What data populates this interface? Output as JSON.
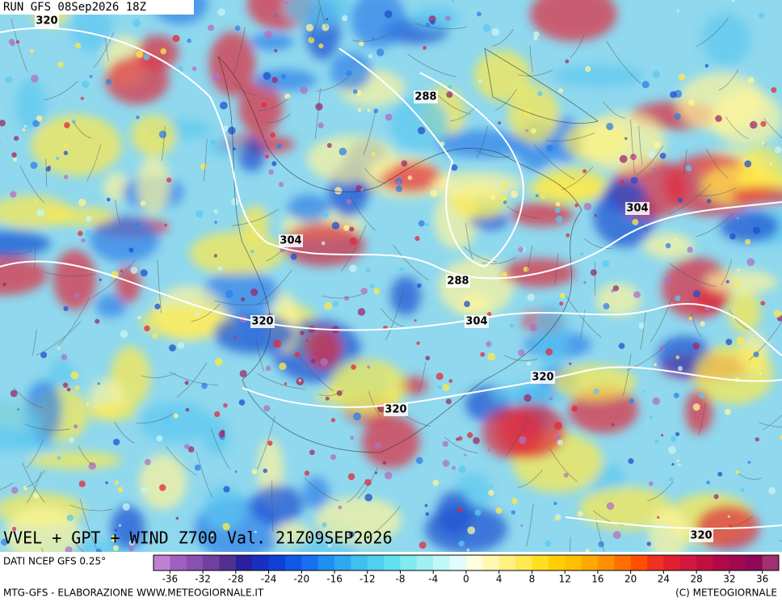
{
  "header": {
    "run": "RUN GFS 08Sep2026 18Z"
  },
  "title": "VVEL + GPT + WIND Z700 Val. 21Z09SEP2026",
  "contour_labels": [
    "320",
    "288",
    "304",
    "304",
    "288",
    "320",
    "304",
    "320",
    "320",
    "320"
  ],
  "legend": {
    "source": "DATI NCEP GFS 0.25°",
    "min": -38,
    "max": 38,
    "ticks": [
      -36,
      -32,
      -28,
      -24,
      -20,
      -16,
      -12,
      -8,
      -4,
      0,
      4,
      8,
      12,
      16,
      20,
      24,
      28,
      32,
      36
    ],
    "colors": [
      "#c080d0",
      "#a060c0",
      "#8850b0",
      "#7040a0",
      "#503090",
      "#2820a0",
      "#1830c0",
      "#1040d8",
      "#1058e8",
      "#1870f0",
      "#2090f0",
      "#30a8f0",
      "#40c0f0",
      "#50d0f0",
      "#60e0f0",
      "#80eaf0",
      "#a0f0f0",
      "#c0f8f8",
      "#e0fcfc",
      "#fffde0",
      "#fff8b0",
      "#fff080",
      "#ffe850",
      "#ffe020",
      "#ffd000",
      "#ffc000",
      "#ffa800",
      "#ff9000",
      "#ff7000",
      "#ff5000",
      "#f03020",
      "#e02030",
      "#d01840",
      "#c01040",
      "#b00848",
      "#a00850",
      "#900858",
      "#a03070"
    ]
  },
  "footer": {
    "left": "MTG-GFS - ELABORAZIONE WWW.METEOGIORNALE.IT",
    "right": "(C) METEOGIORNALE"
  }
}
